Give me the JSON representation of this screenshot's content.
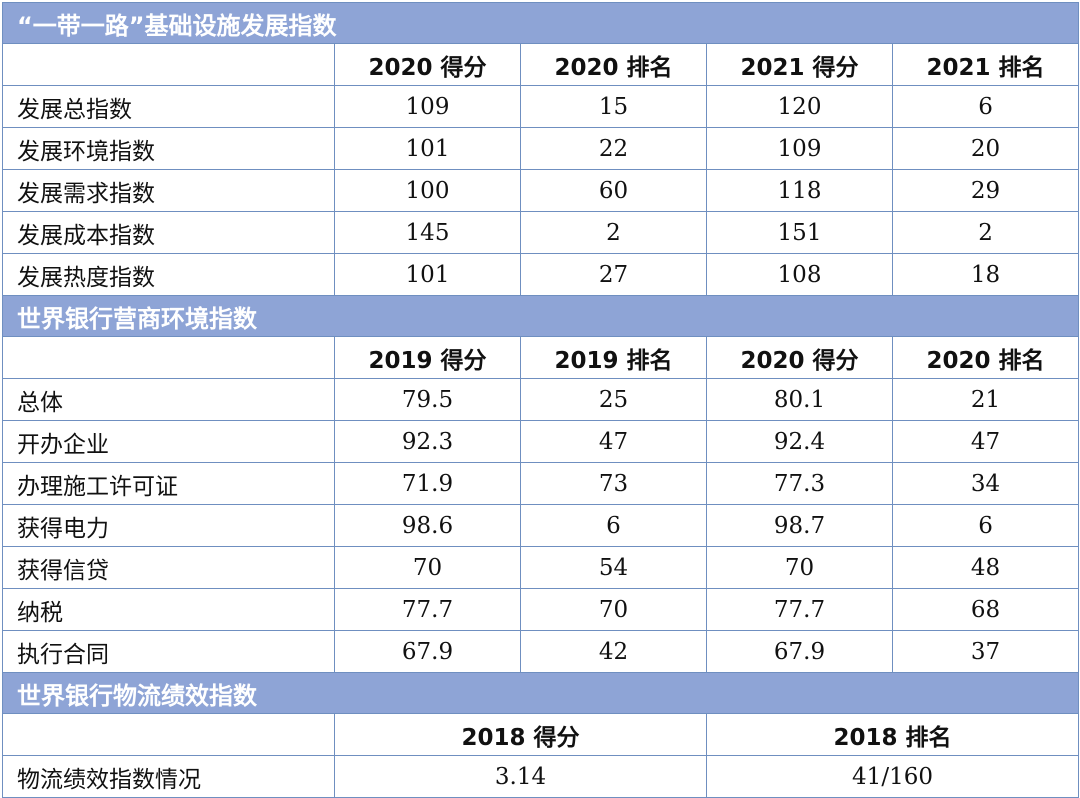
{
  "sections": [
    {
      "title": "“一带一路”基础设施发展指数",
      "headers": [
        "2020 得分",
        "2020 排名",
        "2021 得分",
        "2021 排名"
      ],
      "rows": [
        {
          "label": "发展总指数",
          "values": [
            "109",
            "15",
            "120",
            "6"
          ]
        },
        {
          "label": "发展环境指数",
          "values": [
            "101",
            "22",
            "109",
            "20"
          ]
        },
        {
          "label": "发展需求指数",
          "values": [
            "100",
            "60",
            "118",
            "29"
          ]
        },
        {
          "label": "发展成本指数",
          "values": [
            "145",
            "2",
            "151",
            "2"
          ]
        },
        {
          "label": "发展热度指数",
          "values": [
            "101",
            "27",
            "108",
            "18"
          ]
        }
      ]
    },
    {
      "title": "世界银行营商环境指数",
      "headers": [
        "2019 得分",
        "2019 排名",
        "2020 得分",
        "2020 排名"
      ],
      "rows": [
        {
          "label": "总体",
          "values": [
            "79.5",
            "25",
            "80.1",
            "21"
          ]
        },
        {
          "label": "开办企业",
          "values": [
            "92.3",
            "47",
            "92.4",
            "47"
          ]
        },
        {
          "label": "办理施工许可证",
          "values": [
            "71.9",
            "73",
            "77.3",
            "34"
          ]
        },
        {
          "label": "获得电力",
          "values": [
            "98.6",
            "6",
            "98.7",
            "6"
          ]
        },
        {
          "label": "获得信贷",
          "values": [
            "70",
            "54",
            "70",
            "48"
          ]
        },
        {
          "label": "纳税",
          "values": [
            "77.7",
            "70",
            "77.7",
            "68"
          ]
        },
        {
          "label": "执行合同",
          "values": [
            "67.9",
            "42",
            "67.9",
            "37"
          ]
        }
      ]
    },
    {
      "title": "世界银行物流绩效指数",
      "headers": [
        "2018 得分",
        "2018 排名"
      ],
      "rows": [
        {
          "label": "物流绩效指数情况",
          "values": [
            "3.14",
            "41/160"
          ]
        }
      ]
    }
  ],
  "colors": {
    "section_bg": "#8ea4d6",
    "section_text": "#ffffff",
    "border": "#6f8fc0"
  }
}
